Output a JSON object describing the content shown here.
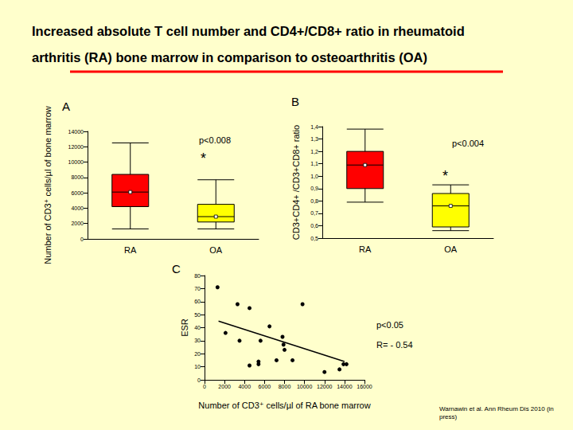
{
  "title": "Increased absolute T cell number and CD4+/CD8+ ratio in rheumatoid arthritis (RA) bone marrow in comparison to osteoarthritis (OA)",
  "citation": "Warnawin et al. Ann Rheum Dis 2010 (in press)",
  "chart_data": [
    {
      "type": "boxplot",
      "panel": "A",
      "ylabel": "Number of CD3⁺ cells/µl of bone marrow",
      "categories": [
        "RA",
        "OA"
      ],
      "boxes": [
        {
          "low": 1300,
          "q1": 4200,
          "median": 6100,
          "q3": 8400,
          "high": 12500
        },
        {
          "low": 1300,
          "q1": 2200,
          "median": 2900,
          "q3": 4500,
          "high": 7700
        }
      ],
      "colors": [
        "#ff0000",
        "#ffff00"
      ],
      "ylim": [
        0,
        14000
      ],
      "yticks": [
        0,
        2000,
        4000,
        6000,
        8000,
        10000,
        12000,
        14000
      ],
      "annotations": [
        "p<0.008",
        "*"
      ],
      "grid": false
    },
    {
      "type": "boxplot",
      "panel": "B",
      "ylabel": "CD3+CD4+ /CD3+CD8+ ratio",
      "categories": [
        "RA",
        "OA"
      ],
      "boxes": [
        {
          "low": 0.79,
          "q1": 0.9,
          "median": 1.09,
          "q3": 1.2,
          "high": 1.38
        },
        {
          "low": 0.56,
          "q1": 0.59,
          "median": 0.76,
          "q3": 0.86,
          "high": 0.93
        }
      ],
      "colors": [
        "#ff0000",
        "#ffff00"
      ],
      "ylim": [
        0.5,
        1.4
      ],
      "yticks": [
        {
          "value": 0.5,
          "label": "0,5"
        },
        {
          "value": 0.6,
          "label": "0,6"
        },
        {
          "value": 0.7,
          "label": "0,7"
        },
        {
          "value": 0.8,
          "label": "0,8"
        },
        {
          "value": 0.9,
          "label": "0,9"
        },
        {
          "value": 1.0,
          "label": "1,0"
        },
        {
          "value": 1.1,
          "label": "1,1"
        },
        {
          "value": 1.2,
          "label": "1,2"
        },
        {
          "value": 1.3,
          "label": "1,3"
        },
        {
          "value": 1.4,
          "label": "1,4"
        }
      ],
      "annotations": [
        "p<0.004",
        "*"
      ],
      "grid": false
    },
    {
      "type": "scatter",
      "panel": "C",
      "xlabel": "Number of CD3⁺ cells/µl of RA bone marrow",
      "ylabel": "ESR",
      "x": [
        1300,
        3300,
        4500,
        9800,
        2100,
        3500,
        6500,
        5600,
        7800,
        7900,
        8000,
        7200,
        5400,
        5400,
        4500,
        8800,
        12000,
        13500,
        13900,
        14200
      ],
      "values": [
        71,
        58,
        55,
        58,
        36,
        30,
        41,
        30,
        33,
        27,
        23,
        15,
        14,
        12,
        11,
        15,
        6,
        8,
        12,
        12
      ],
      "color": "#000000",
      "marker": "circle",
      "trend_line": {
        "x": [
          1400,
          14000
        ],
        "values": [
          45,
          14
        ]
      },
      "xlim": [
        0,
        16000
      ],
      "xticks": [
        0,
        2000,
        4000,
        6000,
        8000,
        10000,
        12000,
        14000,
        16000
      ],
      "ylim": [
        0,
        80
      ],
      "yticks": [
        0,
        10,
        20,
        30,
        40,
        50,
        60,
        70,
        80
      ],
      "annotations": [
        "p<0.05",
        "R= - 0.54"
      ],
      "grid": false
    }
  ]
}
